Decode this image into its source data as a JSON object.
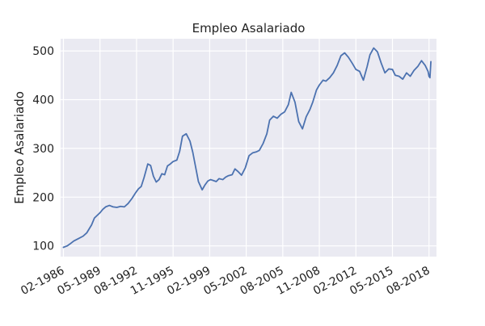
{
  "chart_data": {
    "type": "line",
    "title": "Empleo Asalariado",
    "xlabel": "",
    "ylabel": "Empleo Asalariado",
    "xlim": [
      "1985-11-01",
      "2019-04-01"
    ],
    "ylim": [
      78,
      525
    ],
    "x_ticks": [
      "02-1986",
      "05-1989",
      "08-1992",
      "11-1995",
      "02-1999",
      "05-2002",
      "08-2005",
      "11-2008",
      "02-2012",
      "05-2015",
      "08-2018"
    ],
    "y_ticks": [
      100,
      200,
      300,
      400,
      500
    ],
    "grid": true,
    "legend": "none",
    "colors": {
      "background": "#EAEAF2",
      "grid": "#FFFFFF",
      "line": "#4C72B0"
    },
    "series": [
      {
        "x": [
          "1986-02",
          "1986-06",
          "1986-09",
          "1987-01",
          "1987-06",
          "1987-11",
          "1988-03",
          "1988-08",
          "1988-11",
          "1989-05",
          "1989-08",
          "1989-11",
          "1990-03",
          "1990-07",
          "1990-11",
          "1991-03",
          "1991-07",
          "1991-11",
          "1992-03",
          "1992-07",
          "1992-10",
          "1993-01",
          "1993-04",
          "1993-08",
          "1993-11",
          "1994-02",
          "1994-05",
          "1994-08",
          "1994-11",
          "1995-02",
          "1995-05",
          "1995-08",
          "1995-11",
          "1996-03",
          "1996-06",
          "1996-09",
          "1997-01",
          "1997-05",
          "1997-08",
          "1997-11",
          "1998-02",
          "1998-06",
          "1998-09",
          "1998-12",
          "1999-03",
          "1999-06",
          "1999-09",
          "1999-12",
          "2000-04",
          "2000-07",
          "2000-10",
          "2001-02",
          "2001-05",
          "2001-08",
          "2001-12",
          "2002-04",
          "2002-08",
          "2002-12",
          "2003-04",
          "2003-07",
          "2003-11",
          "2004-03",
          "2004-06",
          "2004-10",
          "2005-02",
          "2005-06",
          "2005-10",
          "2006-02",
          "2006-05",
          "2006-09",
          "2007-01",
          "2007-05",
          "2007-09",
          "2008-01",
          "2008-04",
          "2008-08",
          "2008-11",
          "2009-03",
          "2009-06",
          "2009-10",
          "2010-02",
          "2010-06",
          "2010-10",
          "2011-02",
          "2011-06",
          "2011-10",
          "2012-02",
          "2012-06",
          "2012-10",
          "2013-02",
          "2013-05",
          "2013-09",
          "2014-01",
          "2014-05",
          "2014-09",
          "2015-01",
          "2015-05",
          "2015-08",
          "2015-12",
          "2016-04",
          "2016-08",
          "2016-12",
          "2017-04",
          "2017-08",
          "2017-12",
          "2018-04",
          "2018-07",
          "2018-08",
          "2018-09",
          "2018-10"
        ],
        "y": [
          97,
          100,
          104,
          110,
          115,
          120,
          127,
          143,
          157,
          168,
          175,
          180,
          183,
          180,
          179,
          181,
          180,
          187,
          197,
          209,
          217,
          222,
          240,
          268,
          265,
          243,
          231,
          236,
          248,
          246,
          264,
          268,
          273,
          276,
          294,
          325,
          330,
          315,
          292,
          262,
          232,
          215,
          225,
          233,
          236,
          234,
          232,
          238,
          236,
          241,
          244,
          246,
          258,
          253,
          245,
          260,
          285,
          291,
          293,
          296,
          310,
          330,
          358,
          366,
          362,
          370,
          375,
          390,
          415,
          395,
          355,
          340,
          365,
          380,
          395,
          420,
          430,
          440,
          438,
          445,
          455,
          470,
          490,
          496,
          487,
          475,
          462,
          458,
          440,
          468,
          492,
          506,
          498,
          475,
          455,
          463,
          462,
          450,
          448,
          442,
          455,
          448,
          460,
          468,
          480,
          470,
          458,
          448,
          445,
          478
        ]
      }
    ]
  }
}
